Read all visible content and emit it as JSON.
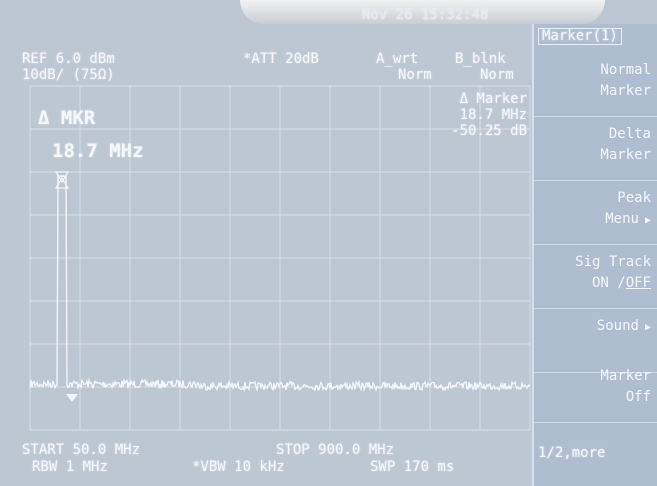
{
  "header": {
    "datetime": "Nov 26 15:32:48",
    "ref": "REF 6.0 dBm",
    "scale": "10dB/ (75Ω)",
    "att": "*ATT 20dB",
    "trace_a": "A_wrt",
    "trace_b": "B_blnk",
    "mode_a": "Norm",
    "mode_b": "Norm"
  },
  "marker_readout": {
    "label": "Δ Marker",
    "freq": "18.7 MHz",
    "level": "-50.25 dB"
  },
  "marker_big": {
    "label": "Δ MKR",
    "freq": "18.7 MHz"
  },
  "footer": {
    "start": "START 50.0 MHz",
    "stop": "STOP 900.0 MHz",
    "rbw": "RBW 1 MHz",
    "vbw": "*VBW 10 kHz",
    "swp": "SWP 170 ms"
  },
  "softkeys": {
    "title": "Marker(1)",
    "items": [
      [
        "Normal",
        "Marker"
      ],
      [
        "Delta",
        "Marker"
      ],
      [
        "Peak",
        "Menu"
      ],
      [
        "Sig Track",
        "ON /",
        "OFF"
      ],
      [
        "Sound"
      ],
      [
        "Marker",
        "Off"
      ]
    ],
    "more": "1/2,more"
  }
}
